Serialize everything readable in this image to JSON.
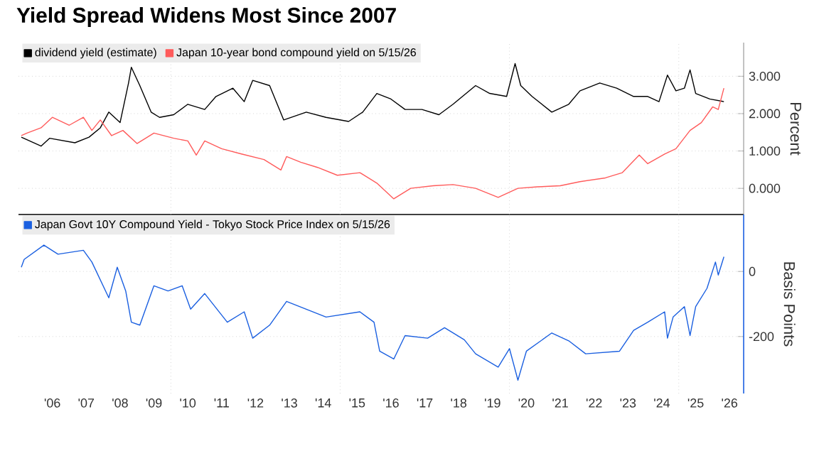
{
  "chart_data": [
    {
      "type": "line",
      "title": "Yield Spread Widens Most Since 2007",
      "ylabel": "Percent",
      "legend": "top left",
      "grid": true,
      "tick_labels": "y",
      "xlim": [
        "2005-07",
        "2026-12"
      ],
      "xticks": [
        {
          "value": "2010-01",
          "label": null
        },
        {
          "value": "2015-01",
          "label": null
        },
        {
          "value": "2020-01",
          "label": null
        },
        {
          "value": "2025-01",
          "label": null
        }
      ],
      "ylim": [
        -0.7,
        3.9
      ],
      "yticks": [
        {
          "value": 0,
          "label": "0.000"
        },
        {
          "value": 1,
          "label": "1.000"
        },
        {
          "value": 2,
          "label": "2.000"
        },
        {
          "value": 3,
          "label": "3.000"
        }
      ],
      "series": [
        {
          "name": "dividend yield (estimate)",
          "color": "#000000",
          "x": [
            "2005-08",
            "2006-03",
            "2006-06",
            "2007-03",
            "2007-08",
            "2007-12",
            "2008-03",
            "2008-07",
            "2008-10",
            "2008-11",
            "2009-02",
            "2009-06",
            "2009-09",
            "2010-02",
            "2010-07",
            "2011-01",
            "2011-05",
            "2011-11",
            "2012-03",
            "2012-06",
            "2012-12",
            "2013-05",
            "2014-01",
            "2014-08",
            "2015-04",
            "2015-09",
            "2016-02",
            "2016-07",
            "2016-12",
            "2017-06",
            "2017-12",
            "2018-05",
            "2019-01",
            "2019-06",
            "2019-12",
            "2020-03",
            "2020-05",
            "2020-09",
            "2021-04",
            "2021-10",
            "2022-02",
            "2022-09",
            "2023-03",
            "2023-09",
            "2024-02",
            "2024-06",
            "2024-09",
            "2024-12",
            "2025-03",
            "2025-05",
            "2025-07",
            "2025-12",
            "2026-05"
          ],
          "values": [
            1.37,
            1.13,
            1.34,
            1.22,
            1.37,
            1.62,
            2.04,
            1.76,
            2.82,
            3.24,
            2.75,
            2.04,
            1.9,
            1.97,
            2.25,
            2.11,
            2.46,
            2.68,
            2.32,
            2.89,
            2.75,
            1.83,
            2.04,
            1.9,
            1.79,
            2.04,
            2.54,
            2.39,
            2.11,
            2.11,
            1.97,
            2.25,
            2.75,
            2.54,
            2.46,
            3.34,
            2.75,
            2.46,
            2.04,
            2.25,
            2.61,
            2.82,
            2.68,
            2.46,
            2.46,
            2.32,
            3.03,
            2.61,
            2.68,
            3.17,
            2.54,
            2.39,
            2.32
          ]
        },
        {
          "name": "Japan 10-year bond compound yield on 5/15/26",
          "color": "#ff5b5b",
          "x": [
            "2005-08",
            "2005-10",
            "2006-03",
            "2006-07",
            "2007-01",
            "2007-06",
            "2007-09",
            "2007-12",
            "2008-04",
            "2008-08",
            "2009-01",
            "2009-07",
            "2010-02",
            "2010-07",
            "2010-10",
            "2011-01",
            "2011-07",
            "2012-02",
            "2012-10",
            "2013-04",
            "2013-06",
            "2013-11",
            "2014-05",
            "2014-12",
            "2015-08",
            "2016-02",
            "2016-08",
            "2017-02",
            "2017-10",
            "2018-05",
            "2019-01",
            "2019-09",
            "2020-04",
            "2020-11",
            "2021-07",
            "2022-02",
            "2022-11",
            "2023-05",
            "2023-11",
            "2024-02",
            "2024-08",
            "2024-12",
            "2025-05",
            "2025-09",
            "2026-01",
            "2026-03",
            "2026-05"
          ],
          "values": [
            1.41,
            1.48,
            1.62,
            1.9,
            1.69,
            1.9,
            1.55,
            1.83,
            1.41,
            1.55,
            1.2,
            1.48,
            1.34,
            1.27,
            0.89,
            1.27,
            1.06,
            0.92,
            0.77,
            0.49,
            0.85,
            0.7,
            0.56,
            0.35,
            0.42,
            0.14,
            -0.28,
            0.0,
            0.07,
            0.1,
            0.0,
            -0.24,
            0.0,
            0.04,
            0.07,
            0.18,
            0.28,
            0.42,
            0.89,
            0.66,
            0.92,
            1.06,
            1.55,
            1.76,
            2.18,
            2.11,
            2.68
          ]
        }
      ]
    },
    {
      "type": "line",
      "ylabel": "Basis Points",
      "legend": "top left",
      "grid": true,
      "xlim": [
        "2005-07",
        "2026-12"
      ],
      "xticks": [
        {
          "value": "2006-07",
          "label": "'06"
        },
        {
          "value": "2007-07",
          "label": "'07"
        },
        {
          "value": "2008-07",
          "label": "'08"
        },
        {
          "value": "2009-07",
          "label": "'09"
        },
        {
          "value": "2010-07",
          "label": "'10"
        },
        {
          "value": "2011-07",
          "label": "'11"
        },
        {
          "value": "2012-07",
          "label": "'12"
        },
        {
          "value": "2013-07",
          "label": "'13"
        },
        {
          "value": "2014-07",
          "label": "'14"
        },
        {
          "value": "2015-07",
          "label": "'15"
        },
        {
          "value": "2016-07",
          "label": "'16"
        },
        {
          "value": "2017-07",
          "label": "'17"
        },
        {
          "value": "2018-07",
          "label": "'18"
        },
        {
          "value": "2019-07",
          "label": "'19"
        },
        {
          "value": "2020-07",
          "label": "'20"
        },
        {
          "value": "2021-07",
          "label": "'21"
        },
        {
          "value": "2022-07",
          "label": "'22"
        },
        {
          "value": "2023-07",
          "label": "'23"
        },
        {
          "value": "2024-07",
          "label": "'24"
        },
        {
          "value": "2025-07",
          "label": "'25"
        },
        {
          "value": "2026-07",
          "label": "'26"
        },
        {
          "value": "2010-01",
          "label": null
        },
        {
          "value": "2015-01",
          "label": null
        },
        {
          "value": "2020-01",
          "label": null
        },
        {
          "value": "2025-01",
          "label": null
        }
      ],
      "ylim": [
        -375,
        175
      ],
      "yticks": [
        -200,
        0
      ],
      "series": [
        {
          "name": "Japan Govt 10Y Compound Yield - Tokyo Stock Price Index on 5/15/26",
          "color": "#1a5fe0",
          "x": [
            "2005-08",
            "2005-09",
            "2006-04",
            "2006-09",
            "2007-06",
            "2007-09",
            "2008-03",
            "2008-06",
            "2008-09",
            "2008-11",
            "2009-02",
            "2009-07",
            "2009-12",
            "2010-05",
            "2010-08",
            "2011-01",
            "2011-09",
            "2012-03",
            "2012-06",
            "2012-12",
            "2013-06",
            "2014-01",
            "2014-08",
            "2015-08",
            "2016-01",
            "2016-03",
            "2016-08",
            "2016-12",
            "2017-08",
            "2018-02",
            "2018-09",
            "2019-01",
            "2019-09",
            "2020-01",
            "2020-04",
            "2020-07",
            "2021-04",
            "2021-10",
            "2022-04",
            "2023-04",
            "2023-09",
            "2024-02",
            "2024-08",
            "2024-09",
            "2024-11",
            "2025-03",
            "2025-05",
            "2025-07",
            "2025-11",
            "2026-02",
            "2026-03",
            "2026-05"
          ],
          "values": [
            13,
            37,
            81,
            53,
            65,
            29,
            -81,
            13,
            -60,
            -156,
            -165,
            -44,
            -60,
            -44,
            -116,
            -68,
            -156,
            -124,
            -205,
            -165,
            -92,
            -116,
            -140,
            -124,
            -156,
            -245,
            -269,
            -197,
            -205,
            -173,
            -210,
            -253,
            -294,
            -237,
            -334,
            -245,
            -189,
            -213,
            -253,
            -245,
            -181,
            -156,
            -124,
            -205,
            -140,
            -108,
            -197,
            -108,
            -52,
            29,
            -11,
            45
          ]
        }
      ]
    }
  ]
}
